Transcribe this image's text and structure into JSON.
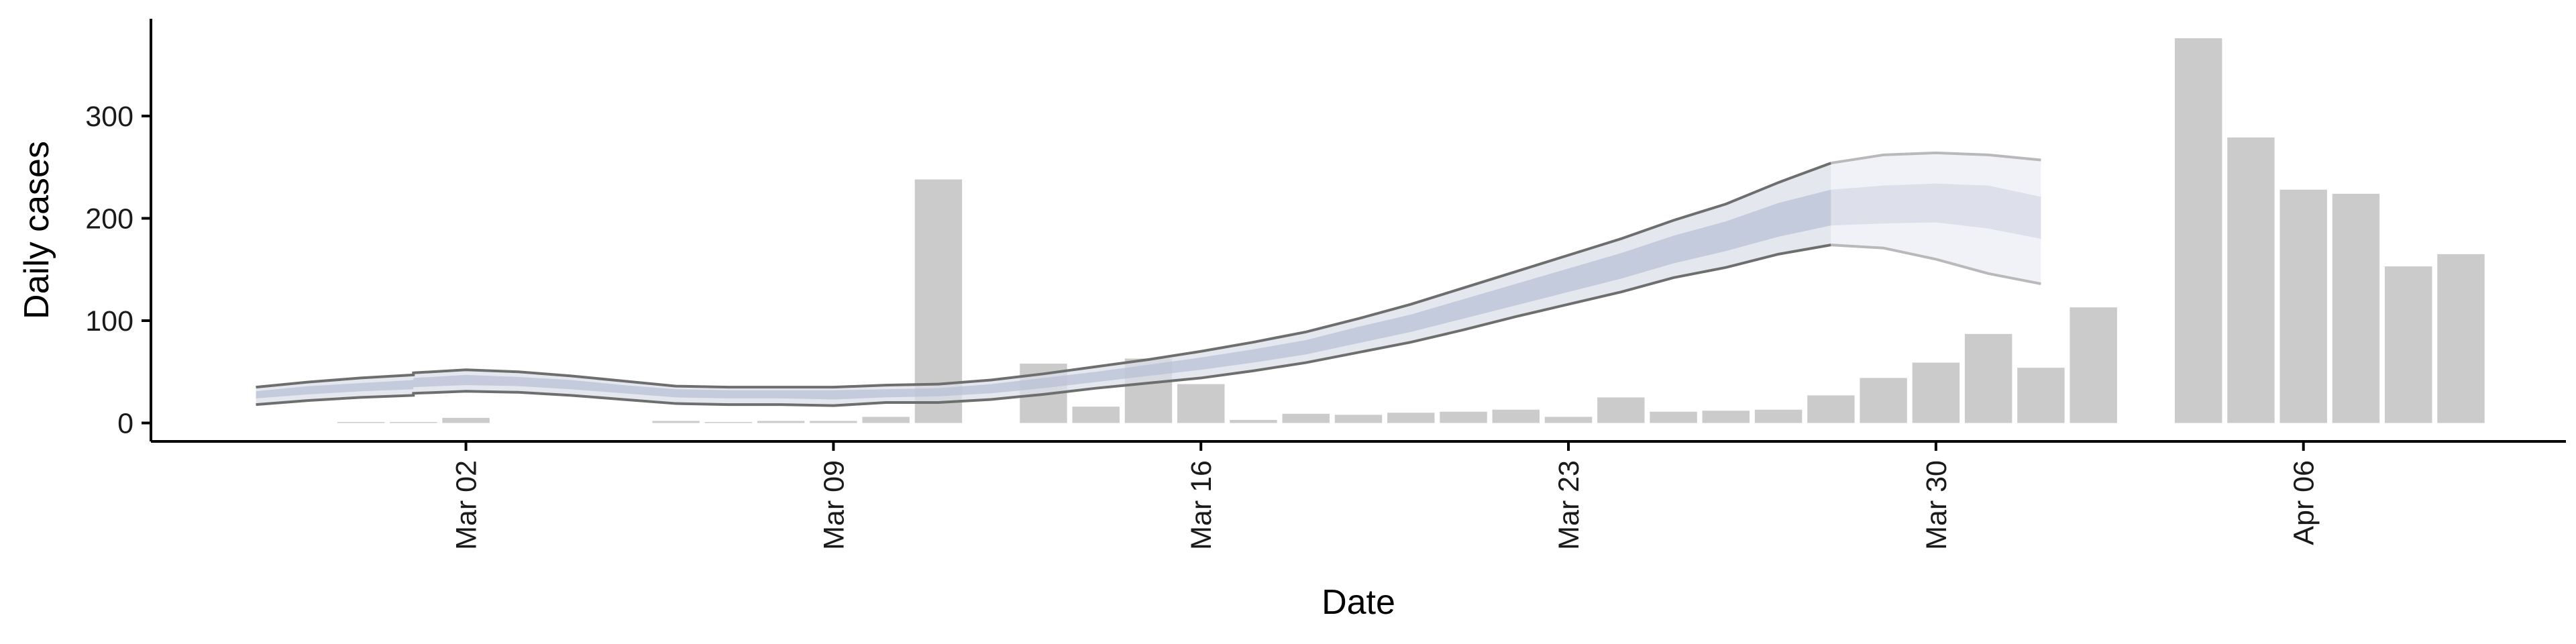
{
  "chart_data": {
    "type": "bar",
    "xlabel": "Date",
    "ylabel": "Daily cases",
    "ylim": [
      -18,
      395
    ],
    "yticks": [
      0,
      100,
      200,
      300
    ],
    "xaxis": {
      "range": [
        "2026-02-24",
        "2026-04-11"
      ]
    },
    "x_ticks": [
      {
        "date": "2026-03-02",
        "label": "Mar 02"
      },
      {
        "date": "2026-03-09",
        "label": "Mar 09"
      },
      {
        "date": "2026-03-16",
        "label": "Mar 16"
      },
      {
        "date": "2026-03-23",
        "label": "Mar 23"
      },
      {
        "date": "2026-03-30",
        "label": "Mar 30"
      },
      {
        "date": "2026-04-06",
        "label": "Apr 06"
      }
    ],
    "bars": [
      {
        "date": "2026-02-28",
        "value": 1
      },
      {
        "date": "2026-02-29",
        "value": 1
      },
      {
        "date": "2026-03-02",
        "value": 5
      },
      {
        "date": "2026-03-06",
        "value": 2
      },
      {
        "date": "2026-03-07",
        "value": 1
      },
      {
        "date": "2026-03-08",
        "value": 2
      },
      {
        "date": "2026-03-09",
        "value": 2
      },
      {
        "date": "2026-03-10",
        "value": 6
      },
      {
        "date": "2026-03-11",
        "value": 238
      },
      {
        "date": "2026-03-13",
        "value": 58
      },
      {
        "date": "2026-03-14",
        "value": 16
      },
      {
        "date": "2026-03-15",
        "value": 63
      },
      {
        "date": "2026-03-16",
        "value": 38
      },
      {
        "date": "2026-03-17",
        "value": 3
      },
      {
        "date": "2026-03-18",
        "value": 9
      },
      {
        "date": "2026-03-19",
        "value": 8
      },
      {
        "date": "2026-03-20",
        "value": 10
      },
      {
        "date": "2026-03-21",
        "value": 11
      },
      {
        "date": "2026-03-22",
        "value": 13
      },
      {
        "date": "2026-03-23",
        "value": 6
      },
      {
        "date": "2026-03-24",
        "value": 25
      },
      {
        "date": "2026-03-25",
        "value": 11
      },
      {
        "date": "2026-03-26",
        "value": 12
      },
      {
        "date": "2026-03-27",
        "value": 13
      },
      {
        "date": "2026-03-28",
        "value": 27
      },
      {
        "date": "2026-03-29",
        "value": 44
      },
      {
        "date": "2026-03-30",
        "value": 59
      },
      {
        "date": "2026-03-31",
        "value": 87
      },
      {
        "date": "2026-04-01",
        "value": 54
      },
      {
        "date": "2026-04-02",
        "value": 113
      },
      {
        "date": "2026-04-04",
        "value": 376
      },
      {
        "date": "2026-04-05",
        "value": 279
      },
      {
        "date": "2026-04-06",
        "value": 228
      },
      {
        "date": "2026-04-07",
        "value": 224
      },
      {
        "date": "2026-04-08",
        "value": 153
      },
      {
        "date": "2026-04-09",
        "value": 165
      }
    ],
    "estimate": [
      {
        "date": "2026-02-26",
        "lower90": 18,
        "lower50": 24,
        "median": 27,
        "upper50": 31,
        "upper90": 35
      },
      {
        "date": "2026-02-27",
        "lower90": 22,
        "lower50": 28,
        "median": 32,
        "upper50": 36,
        "upper90": 40
      },
      {
        "date": "2026-02-28",
        "lower90": 25,
        "lower50": 31,
        "median": 35,
        "upper50": 39,
        "upper90": 44
      },
      {
        "date": "2026-02-29",
        "lower90": 27,
        "lower50": 33,
        "median": 37,
        "upper50": 42,
        "upper90": 47
      },
      {
        "date": "2026-03-01",
        "lower90": 29,
        "lower50": 35,
        "median": 40,
        "upper50": 44,
        "upper90": 49
      },
      {
        "date": "2026-03-02",
        "lower90": 31,
        "lower50": 37,
        "median": 42,
        "upper50": 47,
        "upper90": 52
      },
      {
        "date": "2026-03-03",
        "lower90": 30,
        "lower50": 36,
        "median": 41,
        "upper50": 45,
        "upper90": 50
      },
      {
        "date": "2026-03-04",
        "lower90": 27,
        "lower50": 33,
        "median": 38,
        "upper50": 42,
        "upper90": 46
      },
      {
        "date": "2026-03-05",
        "lower90": 23,
        "lower50": 29,
        "median": 33,
        "upper50": 37,
        "upper90": 41
      },
      {
        "date": "2026-03-06",
        "lower90": 19,
        "lower50": 25,
        "median": 29,
        "upper50": 33,
        "upper90": 36
      },
      {
        "date": "2026-03-07",
        "lower90": 18,
        "lower50": 24,
        "median": 28,
        "upper50": 32,
        "upper90": 35
      },
      {
        "date": "2026-03-08",
        "lower90": 18,
        "lower50": 24,
        "median": 28,
        "upper50": 32,
        "upper90": 35
      },
      {
        "date": "2026-03-09",
        "lower90": 17,
        "lower50": 23,
        "median": 28,
        "upper50": 32,
        "upper90": 35
      },
      {
        "date": "2026-03-10",
        "lower90": 20,
        "lower50": 25,
        "median": 29,
        "upper50": 33,
        "upper90": 37
      },
      {
        "date": "2026-03-11",
        "lower90": 20,
        "lower50": 26,
        "median": 30,
        "upper50": 34,
        "upper90": 38
      },
      {
        "date": "2026-03-12",
        "lower90": 23,
        "lower50": 29,
        "median": 33,
        "upper50": 38,
        "upper90": 42
      },
      {
        "date": "2026-03-13",
        "lower90": 28,
        "lower50": 34,
        "median": 39,
        "upper50": 44,
        "upper90": 48
      },
      {
        "date": "2026-03-14",
        "lower90": 34,
        "lower50": 40,
        "median": 45,
        "upper50": 50,
        "upper90": 55
      },
      {
        "date": "2026-03-15",
        "lower90": 39,
        "lower50": 46,
        "median": 51,
        "upper50": 57,
        "upper90": 62
      },
      {
        "date": "2026-03-16",
        "lower90": 44,
        "lower50": 52,
        "median": 58,
        "upper50": 64,
        "upper90": 70
      },
      {
        "date": "2026-03-17",
        "lower90": 51,
        "lower50": 59,
        "median": 65,
        "upper50": 72,
        "upper90": 79
      },
      {
        "date": "2026-03-18",
        "lower90": 59,
        "lower50": 67,
        "median": 74,
        "upper50": 81,
        "upper90": 89
      },
      {
        "date": "2026-03-19",
        "lower90": 69,
        "lower50": 78,
        "median": 86,
        "upper50": 94,
        "upper90": 102
      },
      {
        "date": "2026-03-20",
        "lower90": 79,
        "lower50": 89,
        "median": 97,
        "upper50": 106,
        "upper90": 116
      },
      {
        "date": "2026-03-21",
        "lower90": 91,
        "lower50": 102,
        "median": 111,
        "upper50": 121,
        "upper90": 132
      },
      {
        "date": "2026-03-22",
        "lower90": 104,
        "lower50": 115,
        "median": 125,
        "upper50": 136,
        "upper90": 148
      },
      {
        "date": "2026-03-23",
        "lower90": 116,
        "lower50": 128,
        "median": 139,
        "upper50": 151,
        "upper90": 164
      },
      {
        "date": "2026-03-24",
        "lower90": 128,
        "lower50": 141,
        "median": 153,
        "upper50": 166,
        "upper90": 180
      },
      {
        "date": "2026-03-25",
        "lower90": 142,
        "lower50": 156,
        "median": 169,
        "upper50": 183,
        "upper90": 198
      },
      {
        "date": "2026-03-26",
        "lower90": 152,
        "lower50": 168,
        "median": 182,
        "upper50": 197,
        "upper90": 214
      },
      {
        "date": "2026-03-27",
        "lower90": 165,
        "lower50": 182,
        "median": 198,
        "upper50": 215,
        "upper90": 235
      },
      {
        "date": "2026-03-28",
        "lower90": 174,
        "lower50": 193,
        "median": 210,
        "upper50": 228,
        "upper90": 254
      },
      {
        "date": "2026-03-29",
        "lower90": 171,
        "lower50": 195,
        "median": 213,
        "upper50": 232,
        "upper90": 262
      },
      {
        "date": "2026-03-30",
        "lower90": 160,
        "lower50": 196,
        "median": 215,
        "upper50": 234,
        "upper90": 264
      },
      {
        "date": "2026-03-31",
        "lower90": 146,
        "lower50": 190,
        "median": 210,
        "upper50": 232,
        "upper90": 262
      },
      {
        "date": "2026-04-01",
        "lower90": 136,
        "lower50": 180,
        "median": 200,
        "upper50": 221,
        "upper90": 257
      }
    ],
    "colors": {
      "bars": "#cbcbcb",
      "band_outer_fill": "#dcdfea",
      "band_inner_fill": "#b6bfd5",
      "band_lines_fit": "#6e6e6e",
      "band_lines_forecast": "#b9b9b9",
      "axis": "#000000"
    }
  }
}
